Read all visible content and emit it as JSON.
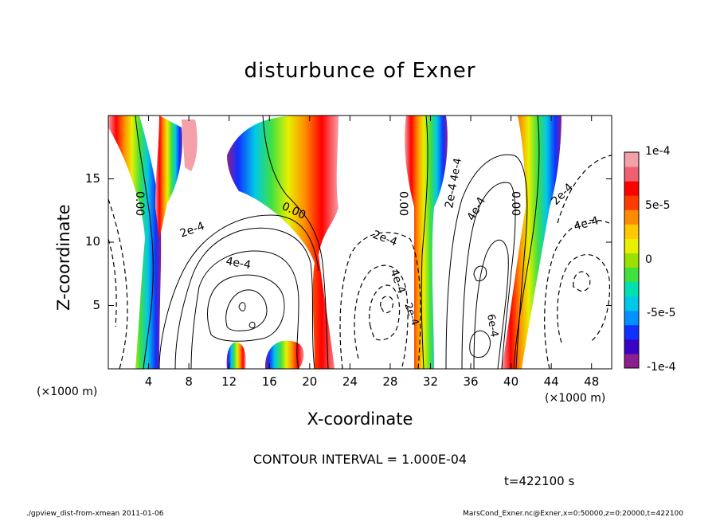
{
  "chart_data": {
    "type": "heatmap",
    "title": "disturbunce of Exner",
    "xlabel": "X-coordinate",
    "ylabel": "Z-coordinate",
    "x_unit": "(×1000 m)",
    "x_unit_right": "(×1000 m)",
    "y_unit": "(×1000 m)",
    "xlim": [
      0,
      50
    ],
    "ylim": [
      0,
      20
    ],
    "x_ticks": [
      "4",
      "8",
      "12",
      "16",
      "20",
      "24",
      "28",
      "32",
      "36",
      "40",
      "44",
      "48"
    ],
    "y_ticks": [
      "5",
      "10",
      "15"
    ],
    "colorbar": {
      "range": [
        -0.0001,
        0.0001
      ],
      "tick_labels": [
        "1e-4",
        "5e-5",
        "0",
        "-5e-5",
        "-1e-4"
      ],
      "colors": [
        "#8b1f8f",
        "#3b00c8",
        "#1030ff",
        "#0090ff",
        "#00c8e8",
        "#00e0b0",
        "#40e040",
        "#9ae000",
        "#e8f000",
        "#ffc800",
        "#ff8c00",
        "#ff3c00",
        "#ff0000",
        "#f06070",
        "#f4a0a8"
      ]
    },
    "contour_labels": [
      "0.00",
      "0.00",
      "0.00",
      "0.00",
      "2e-4",
      "4e-4",
      "2e-4",
      "4e-4",
      "2e-4",
      "4e-4",
      "2e-4",
      "4e-4",
      "2e-4",
      "4e-4",
      "6e-4"
    ],
    "contour_interval": "CONTOUR INTERVAL = 1.000E-04",
    "time": "t=422100  s"
  },
  "footer": {
    "left": "./gpview_dist-from-xmean  2011-01-06",
    "right": "MarsCond_Exner.nc@Exner,x=0:50000,z=0:20000,t=422100"
  }
}
